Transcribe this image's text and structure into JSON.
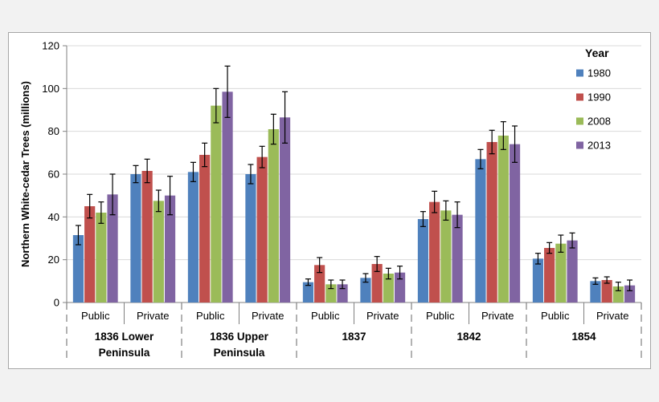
{
  "chart_data": {
    "type": "bar",
    "ylabel": "Northern White-cedar Trees  (millions)",
    "ylim": [
      0,
      120
    ],
    "yticks": [
      "0",
      "20",
      "40",
      "60",
      "80",
      "100",
      "120"
    ],
    "grid": true,
    "legend_title": "Year",
    "legend_position": "right",
    "groups": [
      {
        "label": [
          "1836 Lower",
          "Peninsula"
        ],
        "categories": [
          "Public",
          "Private"
        ]
      },
      {
        "label": [
          "1836 Upper",
          "Peninsula"
        ],
        "categories": [
          "Public",
          "Private"
        ]
      },
      {
        "label": [
          "1837"
        ],
        "categories": [
          "Public",
          "Private"
        ]
      },
      {
        "label": [
          "1842"
        ],
        "categories": [
          "Public",
          "Private"
        ]
      },
      {
        "label": [
          "1854"
        ],
        "categories": [
          "Public",
          "Private"
        ]
      }
    ],
    "series": [
      {
        "name": "1980",
        "color": "#4f81bd",
        "values": [
          31.5,
          60,
          61,
          60,
          9.5,
          11.5,
          39,
          67,
          20.5,
          10
        ],
        "err": [
          4.5,
          4,
          4.5,
          4.5,
          1.5,
          2,
          3.5,
          4.5,
          2.5,
          1.5
        ]
      },
      {
        "name": "1990",
        "color": "#c0504d",
        "values": [
          45,
          61.5,
          69,
          68,
          17.5,
          18,
          47,
          75,
          25.5,
          10.5
        ],
        "err": [
          5.5,
          5.5,
          5.5,
          5,
          3.5,
          3.5,
          5,
          5.5,
          2.5,
          1.5
        ]
      },
      {
        "name": "2008",
        "color": "#9bbb59",
        "values": [
          42,
          47.5,
          92,
          81,
          8.5,
          13.5,
          43,
          78,
          27.5,
          7.5
        ],
        "err": [
          5,
          5,
          8,
          7,
          2,
          2.5,
          4.5,
          6.5,
          4,
          2
        ]
      },
      {
        "name": "2013",
        "color": "#8064a2",
        "values": [
          50.5,
          50,
          98.5,
          86.5,
          8.5,
          14,
          41,
          74,
          29,
          8
        ],
        "err": [
          9.5,
          9,
          12,
          12,
          2,
          3,
          6,
          8.5,
          3.5,
          2.5
        ]
      }
    ]
  }
}
